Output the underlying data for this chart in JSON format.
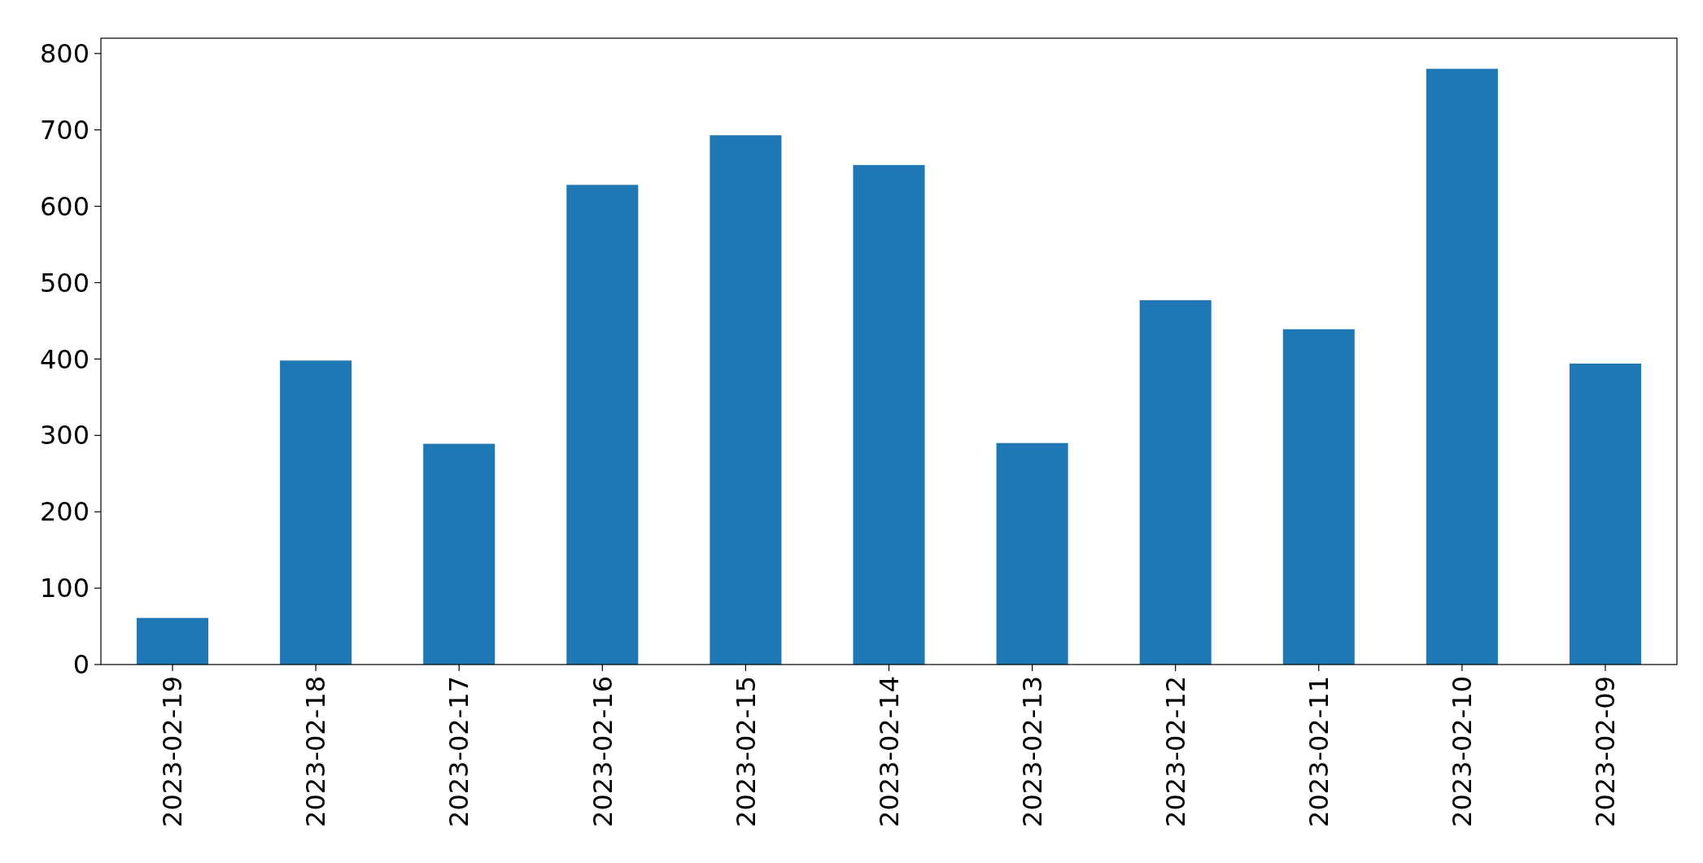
{
  "chart_data": {
    "type": "bar",
    "categories": [
      "2023-02-19",
      "2023-02-18",
      "2023-02-17",
      "2023-02-16",
      "2023-02-15",
      "2023-02-14",
      "2023-02-13",
      "2023-02-12",
      "2023-02-11",
      "2023-02-10",
      "2023-02-09"
    ],
    "values": [
      61,
      398,
      289,
      628,
      693,
      654,
      290,
      477,
      439,
      780,
      394
    ],
    "color": "#1f77b4",
    "ylim": [
      0,
      820
    ],
    "yticks": [
      0,
      100,
      200,
      300,
      400,
      500,
      600,
      700,
      800
    ],
    "grid": false
  }
}
